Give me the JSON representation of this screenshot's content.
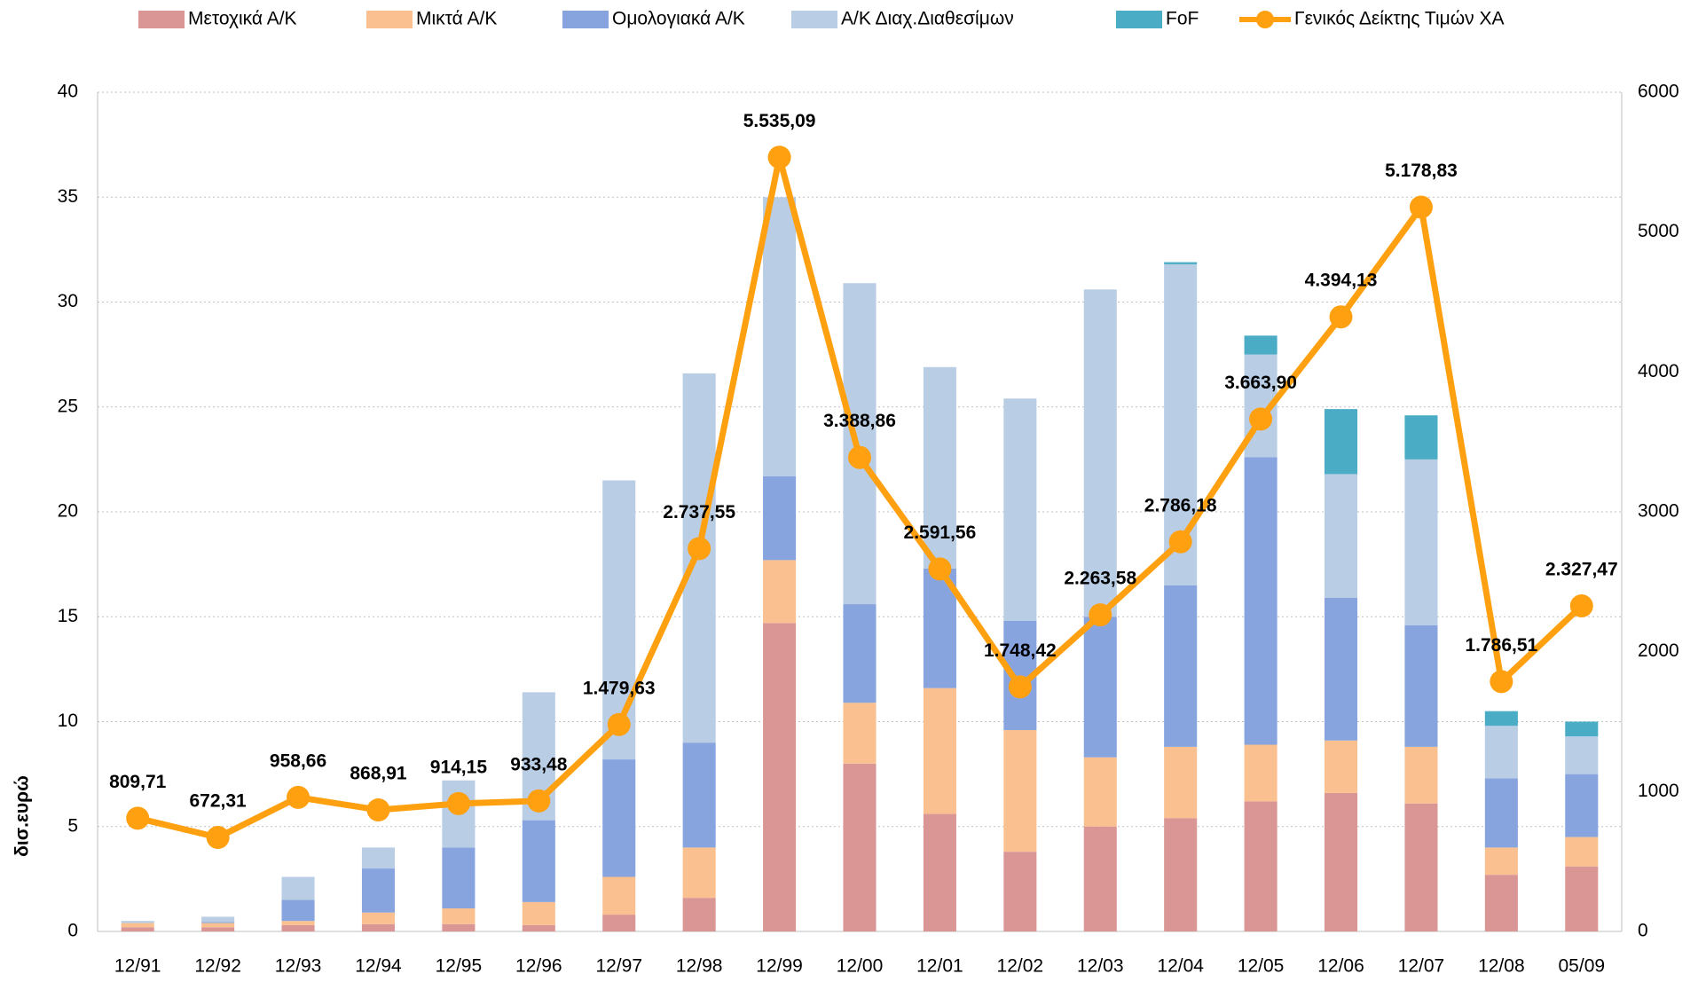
{
  "chart_data": {
    "type": "bar",
    "stacked": true,
    "y_label": "δισ.ευρώ",
    "categories": [
      "12/91",
      "12/92",
      "12/93",
      "12/94",
      "12/95",
      "12/96",
      "12/97",
      "12/98",
      "12/99",
      "12/00",
      "12/01",
      "12/02",
      "12/03",
      "12/04",
      "12/05",
      "12/06",
      "12/07",
      "12/08",
      "05/09"
    ],
    "series": [
      {
        "name": "Μετοχικά Α/Κ",
        "color": "#d99694",
        "values": [
          0.2,
          0.2,
          0.3,
          0.35,
          0.35,
          0.3,
          0.8,
          1.6,
          14.7,
          8.0,
          5.6,
          3.8,
          5.0,
          5.4,
          6.2,
          6.6,
          6.1,
          2.7,
          3.1
        ]
      },
      {
        "name": "Μικτά  Α/Κ",
        "color": "#fac090",
        "values": [
          0.2,
          0.2,
          0.2,
          0.55,
          0.75,
          1.1,
          1.8,
          2.4,
          3.0,
          2.9,
          6.0,
          5.8,
          3.3,
          3.4,
          2.7,
          2.5,
          2.7,
          1.3,
          1.4
        ]
      },
      {
        "name": "Ομολογιακά Α/Κ",
        "color": "#87a4df",
        "values": [
          0,
          0.05,
          1.0,
          2.1,
          2.9,
          3.9,
          5.6,
          5.0,
          4.0,
          4.7,
          5.7,
          5.2,
          6.7,
          7.7,
          13.7,
          6.8,
          5.8,
          3.3,
          3.0
        ]
      },
      {
        "name": "Α/Κ Διαχ.Διαθεσίμων",
        "color": "#b9cde5",
        "values": [
          0.1,
          0.25,
          1.1,
          1.0,
          3.2,
          6.1,
          13.3,
          17.6,
          13.3,
          15.3,
          9.6,
          10.6,
          15.6,
          15.3,
          4.9,
          5.9,
          7.9,
          2.5,
          1.8
        ]
      },
      {
        "name": "FoF",
        "color": "#4bacc6",
        "values": [
          0,
          0,
          0,
          0,
          0,
          0,
          0,
          0,
          0,
          0,
          0,
          0,
          0,
          0.1,
          0.9,
          3.1,
          2.1,
          0.7,
          0.7
        ]
      },
      {
        "name": "Γενικός Δείκτης Τιμών ΧΑ",
        "type": "line",
        "axis": "y2",
        "color": "#ffa010",
        "values": [
          809.71,
          672.31,
          958.66,
          868.91,
          914.15,
          933.48,
          1479.63,
          2737.55,
          5535.09,
          3388.86,
          2591.56,
          1748.42,
          2263.58,
          2786.18,
          3663.9,
          4394.13,
          5178.83,
          1786.51,
          2327.47
        ],
        "value_labels": [
          "809,71",
          "672,31",
          "958,66",
          "868,91",
          "914,15",
          "933,48",
          "1.479,63",
          "2.737,55",
          "5.535,09",
          "3.388,86",
          "2.591,56",
          "1.748,42",
          "2.263,58",
          "2.786,18",
          "3.663,90",
          "4.394,13",
          "5.178,83",
          "1.786,51",
          "2.327,47"
        ]
      }
    ],
    "ylim": [
      0,
      40
    ],
    "yticks": [
      0,
      5,
      10,
      15,
      20,
      25,
      30,
      35,
      40
    ],
    "y2lim": [
      0,
      6000
    ],
    "y2ticks": [
      0,
      1000,
      2000,
      3000,
      4000,
      5000,
      6000
    ],
    "grid": true,
    "legend": "top"
  }
}
